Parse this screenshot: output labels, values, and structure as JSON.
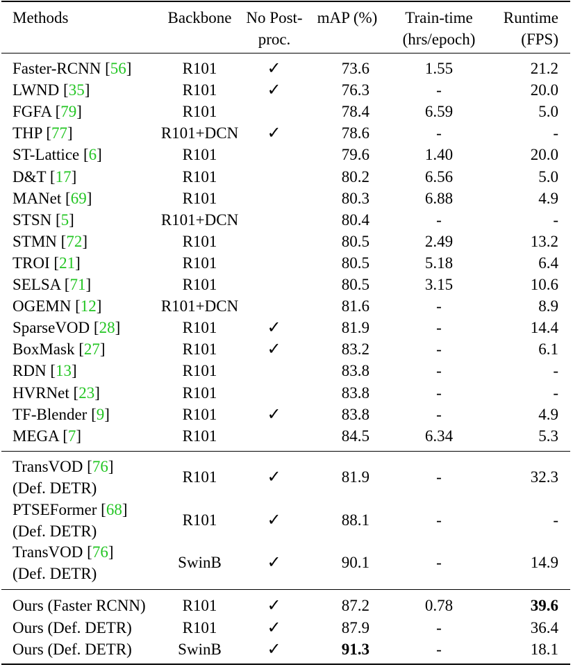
{
  "headers": {
    "methods": "Methods",
    "backbone": "Backbone",
    "no_post_1": "No Post-",
    "no_post_2": "proc.",
    "map": "mAP (%)",
    "train_1": "Train-time",
    "train_2": "(hrs/epoch)",
    "runtime_1": "Runtime",
    "runtime_2": "(FPS)"
  },
  "check_symbol": "✓",
  "group1": [
    {
      "name": "Faster-RCNN",
      "ref": "56",
      "backbone": "R101",
      "check": "✓",
      "map": "73.6",
      "train": "1.55",
      "fps": "21.2"
    },
    {
      "name": "LWND",
      "ref": "35",
      "backbone": "R101",
      "check": "✓",
      "map": "76.3",
      "train": "-",
      "fps": "20.0"
    },
    {
      "name": "FGFA",
      "ref": "79",
      "backbone": "R101",
      "check": "",
      "map": "78.4",
      "train": "6.59",
      "fps": "5.0"
    },
    {
      "name": "THP",
      "ref": "77",
      "backbone": "R101+DCN",
      "check": "✓",
      "map": "78.6",
      "train": "-",
      "fps": "-"
    },
    {
      "name": "ST-Lattice",
      "ref": "6",
      "backbone": "R101",
      "check": "",
      "map": "79.6",
      "train": "1.40",
      "fps": "20.0"
    },
    {
      "name": "D&T",
      "ref": "17",
      "backbone": "R101",
      "check": "",
      "map": "80.2",
      "train": "6.56",
      "fps": "5.0"
    },
    {
      "name": "MANet",
      "ref": "69",
      "backbone": "R101",
      "check": "",
      "map": "80.3",
      "train": "6.88",
      "fps": "4.9"
    },
    {
      "name": "STSN",
      "ref": "5",
      "backbone": "R101+DCN",
      "check": "",
      "map": "80.4",
      "train": "-",
      "fps": "-"
    },
    {
      "name": "STMN",
      "ref": "72",
      "backbone": "R101",
      "check": "",
      "map": "80.5",
      "train": "2.49",
      "fps": "13.2"
    },
    {
      "name": "TROI",
      "ref": "21",
      "backbone": "R101",
      "check": "",
      "map": "80.5",
      "train": "5.18",
      "fps": "6.4"
    },
    {
      "name": "SELSA",
      "ref": "71",
      "backbone": "R101",
      "check": "",
      "map": "80.5",
      "train": "3.15",
      "fps": "10.6"
    },
    {
      "name": "OGEMN",
      "ref": "12",
      "backbone": "R101+DCN",
      "check": "",
      "map": "81.6",
      "train": "-",
      "fps": "8.9"
    },
    {
      "name": "SparseVOD",
      "ref": "28",
      "backbone": "R101",
      "check": "✓",
      "map": "81.9",
      "train": "-",
      "fps": "14.4"
    },
    {
      "name": "BoxMask",
      "ref": "27",
      "backbone": "R101",
      "check": "✓",
      "map": "83.2",
      "train": "-",
      "fps": "6.1"
    },
    {
      "name": "RDN",
      "ref": "13",
      "backbone": "R101",
      "check": "",
      "map": "83.8",
      "train": "-",
      "fps": "-"
    },
    {
      "name": "HVRNet",
      "ref": "23",
      "backbone": "R101",
      "check": "",
      "map": "83.8",
      "train": "-",
      "fps": "-"
    },
    {
      "name": "TF-Blender",
      "ref": "9",
      "backbone": "R101",
      "check": "✓",
      "map": "83.8",
      "train": "-",
      "fps": "4.9"
    },
    {
      "name": "MEGA",
      "ref": "7",
      "backbone": "R101",
      "check": "",
      "map": "84.5",
      "train": "6.34",
      "fps": "5.3"
    }
  ],
  "group2": [
    {
      "name": "TransVOD",
      "ref": "76",
      "sub": "(Def. DETR)",
      "backbone": "R101",
      "check": "✓",
      "map": "81.9",
      "train": "-",
      "fps": "32.3"
    },
    {
      "name": "PTSEFormer",
      "ref": "68",
      "sub": "(Def. DETR)",
      "backbone": "R101",
      "check": "✓",
      "map": "88.1",
      "train": "-",
      "fps": "-"
    },
    {
      "name": "TransVOD",
      "ref": "76",
      "sub": "(Def. DETR)",
      "backbone": "SwinB",
      "check": "✓",
      "map": "90.1",
      "train": "-",
      "fps": "14.9"
    }
  ],
  "group3": [
    {
      "name": "Ours (Faster RCNN)",
      "backbone": "R101",
      "check": "✓",
      "map": "87.2",
      "train": "0.78",
      "fps": "39.6",
      "bold_fps": true
    },
    {
      "name": "Ours (Def. DETR)",
      "backbone": "R101",
      "check": "✓",
      "map": "87.9",
      "train": "-",
      "fps": "36.4"
    },
    {
      "name": "Ours (Def. DETR)",
      "backbone": "SwinB",
      "check": "✓",
      "map": "91.3",
      "train": "-",
      "fps": "18.1",
      "bold_map": true
    }
  ]
}
